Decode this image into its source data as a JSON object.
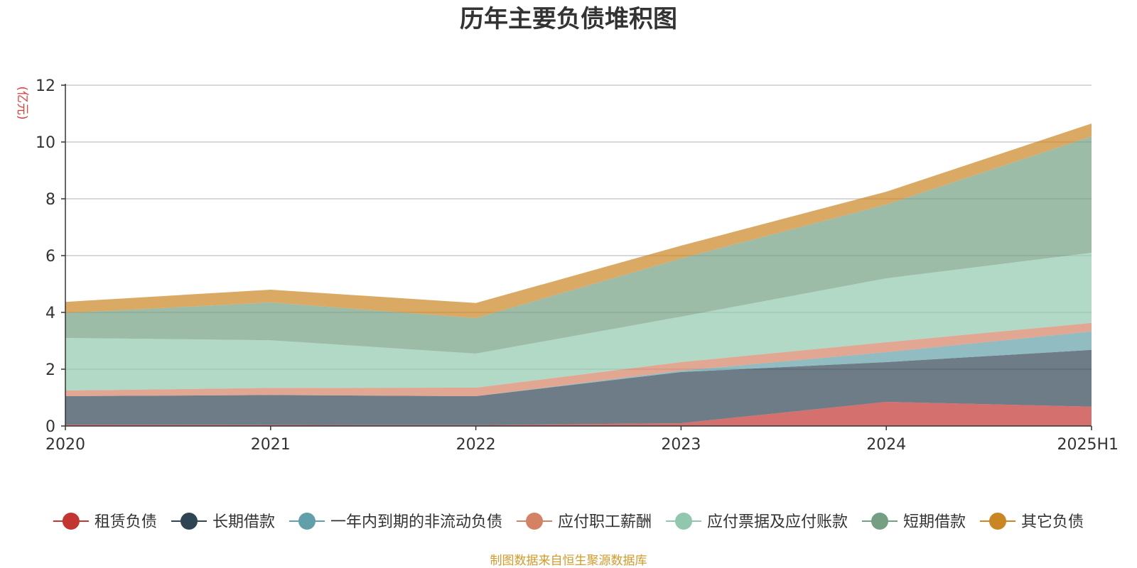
{
  "chart_data": {
    "type": "area",
    "stacked": true,
    "title": "历年主要负债堆积图",
    "unit_label": "(亿元)",
    "source_note": "制图数据来自恒生聚源数据库",
    "x": [
      "2020",
      "2021",
      "2022",
      "2023",
      "2024",
      "2025H1"
    ],
    "ylim": [
      0,
      12
    ],
    "yticks": [
      0,
      2,
      4,
      6,
      8,
      10,
      12
    ],
    "grid": true,
    "legend_position": "bottom",
    "series": [
      {
        "name": "租赁负债",
        "color": "#c23531",
        "values": [
          0.05,
          0.04,
          0.03,
          0.1,
          0.85,
          0.68
        ]
      },
      {
        "name": "长期借款",
        "color": "#2f4554",
        "values": [
          1.0,
          1.05,
          1.02,
          1.8,
          1.4,
          2.0
        ]
      },
      {
        "name": "一年内到期的非流动负债",
        "color": "#61a0a8",
        "values": [
          0.0,
          0.0,
          0.0,
          0.05,
          0.35,
          0.65
        ]
      },
      {
        "name": "应付职工薪酬",
        "color": "#d48265",
        "values": [
          0.2,
          0.25,
          0.3,
          0.3,
          0.35,
          0.3
        ]
      },
      {
        "name": "应付票据及应付账款",
        "color": "#91c7ae",
        "values": [
          1.85,
          1.68,
          1.2,
          1.6,
          2.25,
          2.47
        ]
      },
      {
        "name": "短期借款",
        "color": "#749f83",
        "values": [
          0.88,
          1.33,
          1.25,
          2.05,
          2.6,
          4.1
        ]
      },
      {
        "name": "其它负债",
        "color": "#ca8622",
        "values": [
          0.39,
          0.45,
          0.53,
          0.45,
          0.45,
          0.45
        ]
      }
    ]
  }
}
